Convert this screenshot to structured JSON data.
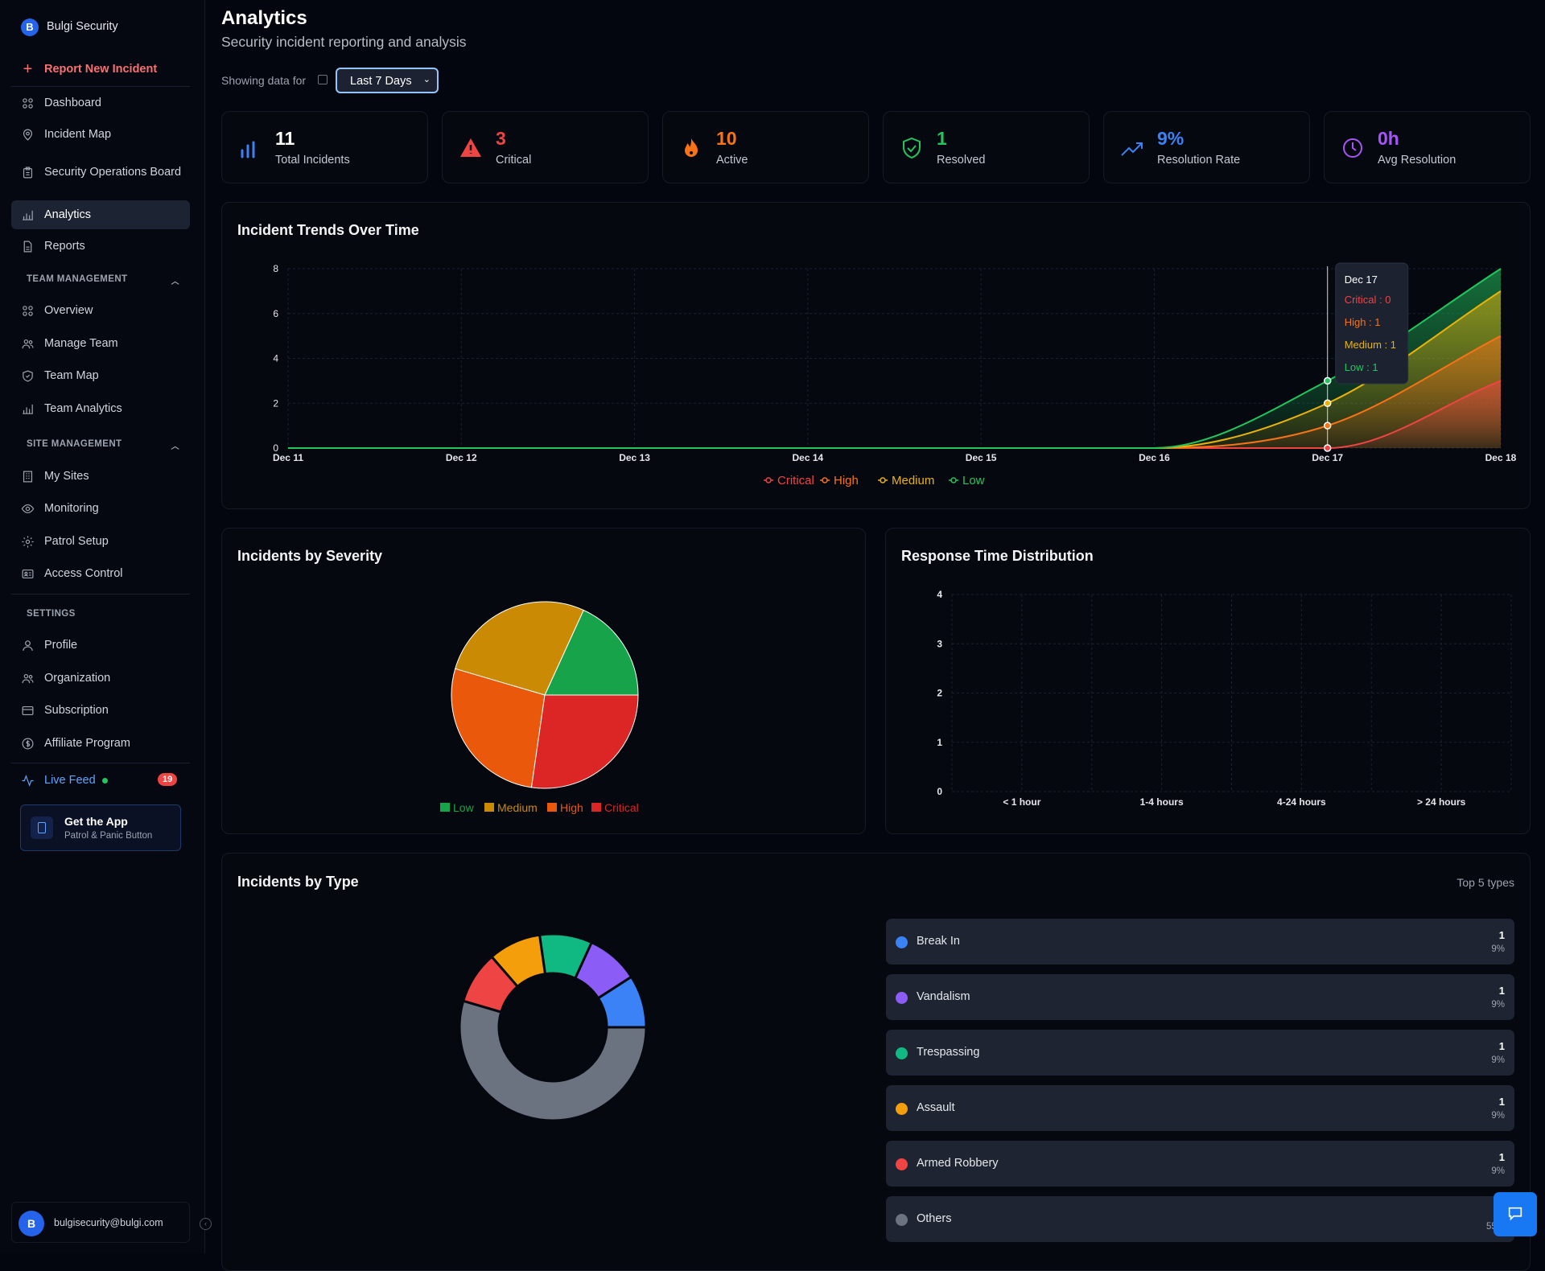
{
  "brand": {
    "initial": "B",
    "name": "Bulgi Security"
  },
  "sidebar": {
    "report_label": "Report New Incident",
    "items": [
      {
        "label": "Dashboard",
        "icon": "grid-icon"
      },
      {
        "label": "Incident Map",
        "icon": "map-pin-icon"
      },
      {
        "label": "Security Operations Board",
        "icon": "clipboard-icon"
      },
      {
        "label": "Analytics",
        "icon": "bar-chart-icon",
        "active": true
      },
      {
        "label": "Reports",
        "icon": "file-icon"
      }
    ],
    "team_section": "TEAM MANAGEMENT",
    "team_items": [
      {
        "label": "Overview",
        "icon": "grid-icon"
      },
      {
        "label": "Manage Team",
        "icon": "users-icon"
      },
      {
        "label": "Team Map",
        "icon": "shield-icon"
      },
      {
        "label": "Team Analytics",
        "icon": "bar-chart-icon"
      }
    ],
    "site_section": "SITE MANAGEMENT",
    "site_items": [
      {
        "label": "My Sites",
        "icon": "building-icon"
      },
      {
        "label": "Monitoring",
        "icon": "eye-icon"
      },
      {
        "label": "Patrol Setup",
        "icon": "gear-icon"
      },
      {
        "label": "Access Control",
        "icon": "id-card-icon"
      }
    ],
    "settings_section": "SETTINGS",
    "settings_items": [
      {
        "label": "Profile",
        "icon": "user-icon"
      },
      {
        "label": "Organization",
        "icon": "users-icon"
      },
      {
        "label": "Subscription",
        "icon": "credit-card-icon"
      },
      {
        "label": "Affiliate Program",
        "icon": "dollar-icon"
      }
    ],
    "live_feed": {
      "label": "Live Feed",
      "badge": "19"
    },
    "get_app": {
      "title": "Get the App",
      "subtitle": "Patrol & Panic Button"
    },
    "user": {
      "initial": "B",
      "email": "bulgisecurity@bulgi.com"
    }
  },
  "header": {
    "title": "Analytics",
    "subtitle": "Security incident reporting and analysis",
    "showing_label": "Showing data for",
    "range": "Last 7 Days"
  },
  "stats": [
    {
      "value": "11",
      "label": "Total Incidents",
      "color": "#3b82f6",
      "icon": "bar-chart-icon"
    },
    {
      "value": "3",
      "label": "Critical",
      "color": "#ef4444",
      "icon": "warning-icon"
    },
    {
      "value": "10",
      "label": "Active",
      "color": "#f97316",
      "icon": "flame-icon"
    },
    {
      "value": "1",
      "label": "Resolved",
      "color": "#22c55e",
      "icon": "shield-check-icon"
    },
    {
      "value": "9%",
      "label": "Resolution Rate",
      "color": "#3b82f6",
      "icon": "trending-up-icon"
    },
    {
      "value": "0h",
      "label": "Avg Resolution",
      "color": "#a855f7",
      "icon": "clock-icon"
    }
  ],
  "chart_data": [
    {
      "type": "area",
      "title": "Incident Trends Over Time",
      "stacked": true,
      "x": [
        "Dec 11",
        "Dec 12",
        "Dec 13",
        "Dec 14",
        "Dec 15",
        "Dec 16",
        "Dec 17",
        "Dec 18"
      ],
      "ylim": [
        0,
        8
      ],
      "yticks": [
        0,
        2,
        4,
        6,
        8
      ],
      "legend": "bottom",
      "series": [
        {
          "name": "Critical",
          "color": "#ef4444",
          "values": [
            0,
            0,
            0,
            0,
            0,
            0,
            0,
            3
          ]
        },
        {
          "name": "High",
          "color": "#f97316",
          "values": [
            0,
            0,
            0,
            0,
            0,
            0,
            1,
            2
          ]
        },
        {
          "name": "Medium",
          "color": "#eab308",
          "values": [
            0,
            0,
            0,
            0,
            0,
            0,
            1,
            2
          ]
        },
        {
          "name": "Low",
          "color": "#22c55e",
          "values": [
            0,
            0,
            0,
            0,
            0,
            0,
            1,
            1
          ]
        }
      ],
      "tooltip": {
        "date": "Dec 17",
        "rows": [
          "Critical : 0",
          "High : 1",
          "Medium : 1",
          "Low : 1"
        ]
      }
    },
    {
      "type": "pie",
      "title": "Incidents by Severity",
      "legend": "bottom",
      "categories": [
        "Low",
        "Medium",
        "High",
        "Critical"
      ],
      "values": [
        2,
        3,
        3,
        3
      ],
      "colors": [
        "#16a34a",
        "#ca8a04",
        "#ea580c",
        "#dc2626"
      ]
    },
    {
      "type": "bar",
      "title": "Response Time Distribution",
      "categories": [
        "< 1 hour",
        "1-4 hours",
        "4-24 hours",
        "> 24 hours"
      ],
      "values": [
        0,
        0,
        0,
        0
      ],
      "ylim": [
        0,
        4
      ],
      "yticks": [
        0,
        1,
        2,
        3,
        4
      ],
      "grid": true
    },
    {
      "type": "pie",
      "subtype": "donut",
      "title": "Incidents by Type",
      "note": "Top 5 types",
      "categories": [
        "Break In",
        "Vandalism",
        "Trespassing",
        "Assault",
        "Armed Robbery",
        "Others"
      ],
      "values": [
        1,
        1,
        1,
        1,
        1,
        6
      ],
      "percents": [
        "9%",
        "9%",
        "9%",
        "9%",
        "9%",
        "55%"
      ],
      "colors": [
        "#3b82f6",
        "#8b5cf6",
        "#10b981",
        "#f59e0b",
        "#ef4444",
        "#6b7280"
      ]
    }
  ]
}
